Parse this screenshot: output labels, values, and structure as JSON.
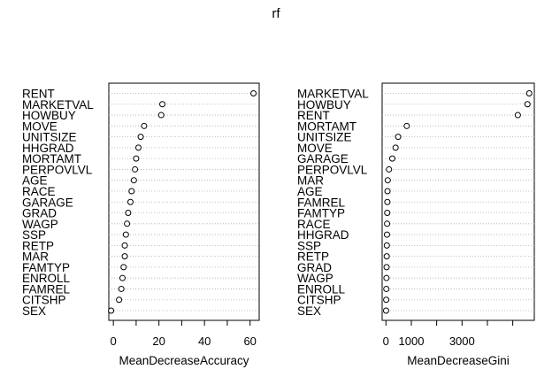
{
  "title": "rf",
  "chart_data": [
    {
      "type": "scatter",
      "subtype": "dotchart",
      "xlabel": "MeanDecreaseAccuracy",
      "ylabel": "",
      "xlim": [
        -2,
        64
      ],
      "xticks": [
        0,
        20,
        40,
        60
      ],
      "gridlines": "dotted-horizontal",
      "categories": [
        "RENT",
        "MARKETVAL",
        "HOWBUY",
        "MOVE",
        "UNITSIZE",
        "HHGRAD",
        "MORTAMT",
        "PERPOVLVL",
        "AGE",
        "RACE",
        "GARAGE",
        "GRAD",
        "WAGP",
        "SSP",
        "RETP",
        "MAR",
        "FAMTYP",
        "ENROLL",
        "FAMREL",
        "CITSHP",
        "SEX"
      ],
      "values": [
        61.5,
        21.5,
        21.0,
        13.5,
        12.0,
        11.0,
        10.0,
        9.5,
        9.0,
        8.0,
        7.5,
        6.5,
        6.0,
        5.5,
        5.0,
        5.0,
        4.5,
        4.0,
        3.5,
        2.5,
        -1.0
      ]
    },
    {
      "type": "scatter",
      "subtype": "dotchart",
      "xlabel": "MeanDecreaseGini",
      "ylabel": "",
      "xlim": [
        -150,
        5850
      ],
      "xticks": [
        0,
        1000,
        3000
      ],
      "gridlines": "dotted-horizontal",
      "categories": [
        "MARKETVAL",
        "HOWBUY",
        "RENT",
        "MORTAMT",
        "UNITSIZE",
        "MOVE",
        "GARAGE",
        "PERPOVLVL",
        "MAR",
        "AGE",
        "FAMREL",
        "FAMTYP",
        "RACE",
        "HHGRAD",
        "SSP",
        "RETP",
        "GRAD",
        "WAGP",
        "ENROLL",
        "CITSHP",
        "SEX"
      ],
      "values": [
        5650,
        5580,
        5200,
        820,
        480,
        380,
        250,
        120,
        70,
        60,
        55,
        50,
        45,
        40,
        35,
        30,
        25,
        20,
        15,
        10,
        5
      ]
    }
  ]
}
